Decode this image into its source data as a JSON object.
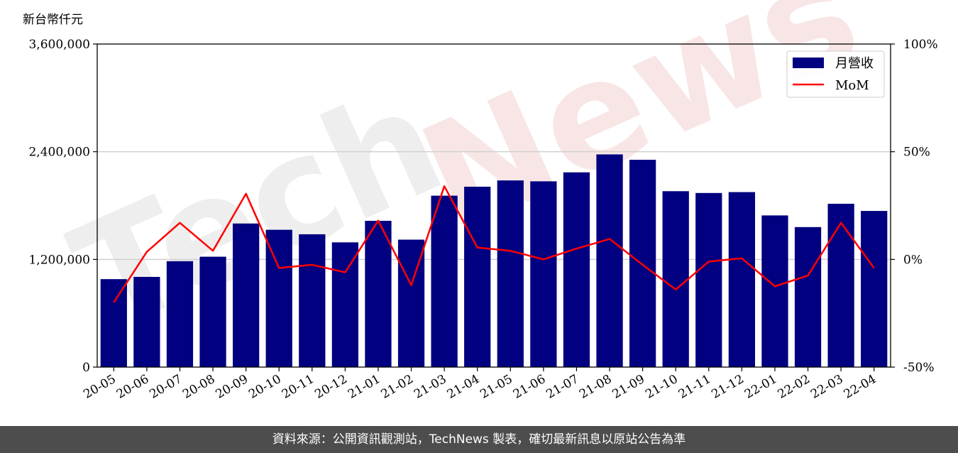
{
  "chart_data": {
    "type": "bar",
    "unit_label": "新台幣仟元",
    "categories": [
      "20-05",
      "20-06",
      "20-07",
      "20-08",
      "20-09",
      "20-10",
      "20-11",
      "20-12",
      "21-01",
      "21-02",
      "21-03",
      "21-04",
      "21-05",
      "21-06",
      "21-07",
      "21-08",
      "21-09",
      "21-10",
      "21-11",
      "21-12",
      "22-01",
      "22-02",
      "22-03",
      "22-04"
    ],
    "series": [
      {
        "name": "月營收",
        "type": "bar",
        "axis": "left",
        "color": "#000080",
        "values": [
          980000,
          1005000,
          1180000,
          1230000,
          1600000,
          1530000,
          1480000,
          1390000,
          1630000,
          1420000,
          1910000,
          2010000,
          2080000,
          2070000,
          2170000,
          2370000,
          2310000,
          1960000,
          1940000,
          1950000,
          1690000,
          1560000,
          1820000,
          1740000
        ]
      },
      {
        "name": "MoM",
        "type": "line",
        "axis": "right",
        "color": "#ff0000",
        "values": [
          -20,
          3.5,
          17,
          4,
          30.5,
          -4,
          -2.5,
          -6,
          18,
          -12,
          34,
          5.5,
          4,
          0,
          5,
          9.5,
          -2.5,
          -14,
          -1,
          0.5,
          -12.5,
          -7.5,
          17,
          -4
        ]
      }
    ],
    "y_left": {
      "min": 0,
      "max": 3600000,
      "ticks": [
        "0",
        "1,200,000",
        "2,400,000",
        "3,600,000"
      ],
      "tick_values": [
        0,
        1200000,
        2400000,
        3600000
      ]
    },
    "y_right": {
      "min": -50,
      "max": 100,
      "ticks": [
        "-50%",
        "0%",
        "50%",
        "100%"
      ],
      "tick_values": [
        -50,
        0,
        50,
        100
      ]
    },
    "grid": "horizontal",
    "legend_position": "top-right"
  },
  "watermark": {
    "text_a": "Tech",
    "text_b": "News"
  },
  "footer": {
    "text": "資料來源：公開資訊觀測站，TechNews 製表，確切最新訊息以原站公告為準"
  }
}
